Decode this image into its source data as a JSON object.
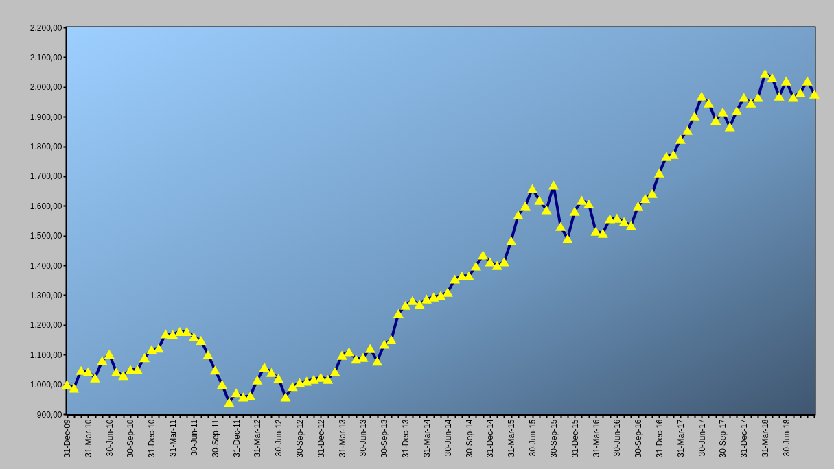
{
  "chart_data": {
    "type": "line",
    "categories": [
      "31-Dec-09",
      null,
      null,
      "31-Mar-10",
      null,
      null,
      "30-Jun-10",
      null,
      null,
      "30-Sep-10",
      null,
      null,
      "31-Dec-10",
      null,
      null,
      "31-Mar-11",
      null,
      null,
      "30-Jun-11",
      null,
      null,
      "30-Sep-11",
      null,
      null,
      "31-Dec-11",
      null,
      null,
      "31-Mar-12",
      null,
      null,
      "30-Jun-12",
      null,
      null,
      "30-Sep-12",
      null,
      null,
      "31-Dec-12",
      null,
      null,
      "31-Mar-13",
      null,
      null,
      "30-Jun-13",
      null,
      null,
      "30-Sep-13",
      null,
      null,
      "31-Dec-13",
      null,
      null,
      "31-Mar-14",
      null,
      null,
      "30-Jun-14",
      null,
      null,
      "30-Sep-14",
      null,
      null,
      "31-Dec-14",
      null,
      null,
      "31-Mar-15",
      null,
      null,
      "30-Jun-15",
      null,
      null,
      "30-Sep-15",
      null,
      null,
      "31-Dec-15",
      null,
      null,
      "31-Mar-16",
      null,
      null,
      "30-Jun-16",
      null,
      null,
      "30-Sep-16",
      null,
      null,
      "31-Dec-16",
      null,
      null,
      "31-Mar-17",
      null,
      null,
      "30-Jun-17",
      null,
      null,
      "30-Sep-17",
      null,
      null,
      "31-Dec-17",
      null,
      null,
      "31-Mar-18",
      null,
      null,
      "30-Jun-18",
      null,
      null,
      null,
      null
    ],
    "series": [
      {
        "color": "#000080",
        "values": [
          1000,
          988,
          1047,
          1043,
          1022,
          1080,
          1102,
          1042,
          1030,
          1050,
          1050,
          1090,
          1117,
          1122,
          1170,
          1168,
          1178,
          1178,
          1160,
          1148,
          1100,
          1048,
          1000,
          940,
          972,
          958,
          962,
          1015,
          1058,
          1040,
          1020,
          958,
          993,
          1006,
          1011,
          1017,
          1024,
          1017,
          1043,
          1098,
          1110,
          1085,
          1091,
          1121,
          1078,
          1135,
          1150,
          1238,
          1266,
          1282,
          1269,
          1287,
          1294,
          1299,
          1310,
          1354,
          1365,
          1365,
          1398,
          1435,
          1412,
          1400,
          1412,
          1483,
          1570,
          1600,
          1658,
          1619,
          1587,
          1670,
          1531,
          1490,
          1582,
          1619,
          1607,
          1515,
          1508,
          1557,
          1559,
          1547,
          1534,
          1600,
          1625,
          1642,
          1711,
          1766,
          1773,
          1824,
          1854,
          1902,
          1969,
          1946,
          1888,
          1916,
          1866,
          1920,
          1965,
          1946,
          1965,
          2045,
          2031,
          1969,
          2020,
          1965,
          1981,
          2020,
          1976
        ]
      }
    ],
    "ylim": [
      900,
      2200
    ],
    "yticks": [
      {
        "value": 900,
        "label": "900,00"
      },
      {
        "value": 1000,
        "label": "1.000,00"
      },
      {
        "value": 1100,
        "label": "1.100,00"
      },
      {
        "value": 1200,
        "label": "1.200,00"
      },
      {
        "value": 1300,
        "label": "1.300,00"
      },
      {
        "value": 1400,
        "label": "1.400,00"
      },
      {
        "value": 1500,
        "label": "1.500,00"
      },
      {
        "value": 1600,
        "label": "1.600,00"
      },
      {
        "value": 1700,
        "label": "1.700,00"
      },
      {
        "value": 1800,
        "label": "1.800,00"
      },
      {
        "value": 1900,
        "label": "1.900,00"
      },
      {
        "value": 2000,
        "label": "2.000,00"
      },
      {
        "value": 2100,
        "label": "2.100,00"
      },
      {
        "value": 2200,
        "label": "2.200,00"
      }
    ],
    "grid": false,
    "marker": "triangle",
    "line_style": "solid"
  }
}
